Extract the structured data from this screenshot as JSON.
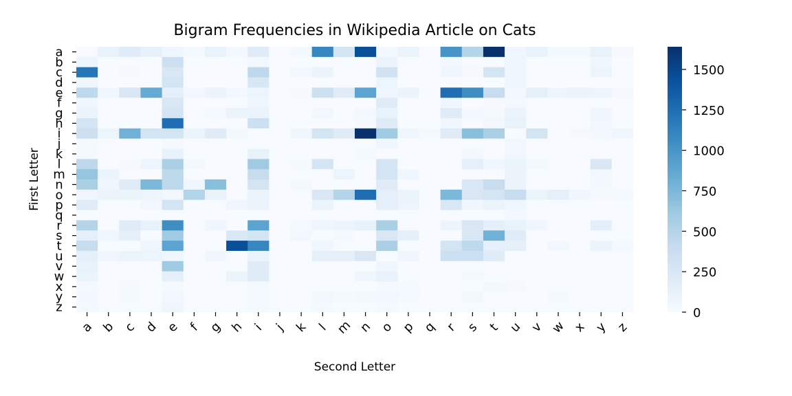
{
  "chart_data": {
    "type": "heatmap",
    "title": "Bigram Frequencies in Wikipedia Article on Cats",
    "xlabel": "Second Letter",
    "ylabel": "First Letter",
    "x_categories": [
      "a",
      "b",
      "c",
      "d",
      "e",
      "f",
      "g",
      "h",
      "i",
      "j",
      "k",
      "l",
      "m",
      "n",
      "o",
      "p",
      "q",
      "r",
      "s",
      "t",
      "u",
      "v",
      "w",
      "x",
      "y",
      "z"
    ],
    "y_categories": [
      "a",
      "b",
      "c",
      "d",
      "e",
      "f",
      "g",
      "h",
      "i",
      "j",
      "k",
      "l",
      "m",
      "n",
      "o",
      "p",
      "q",
      "r",
      "s",
      "t",
      "u",
      "v",
      "w",
      "x",
      "y",
      "z"
    ],
    "colorbar": {
      "min": 0,
      "max": 1640,
      "ticks": [
        0,
        250,
        500,
        750,
        1000,
        1250,
        1500
      ],
      "tick_labels": [
        "0",
        "250",
        "500",
        "750",
        "1000",
        "1250",
        "1500"
      ],
      "colormap": "Blues"
    },
    "values": [
      [
        10,
        120,
        200,
        130,
        60,
        30,
        120,
        40,
        200,
        0,
        40,
        1100,
        300,
        1450,
        40,
        100,
        0,
        1000,
        500,
        1640,
        60,
        120,
        40,
        40,
        120,
        20
      ],
      [
        80,
        0,
        0,
        0,
        350,
        0,
        0,
        0,
        50,
        0,
        0,
        0,
        0,
        0,
        100,
        0,
        0,
        40,
        0,
        0,
        60,
        0,
        0,
        0,
        60,
        0
      ],
      [
        1200,
        0,
        20,
        0,
        250,
        0,
        0,
        10,
        450,
        0,
        40,
        100,
        0,
        0,
        320,
        0,
        0,
        60,
        20,
        300,
        60,
        0,
        0,
        0,
        80,
        0
      ],
      [
        60,
        0,
        0,
        0,
        300,
        0,
        0,
        0,
        250,
        0,
        0,
        0,
        0,
        0,
        80,
        0,
        0,
        0,
        0,
        0,
        60,
        0,
        0,
        0,
        0,
        0
      ],
      [
        450,
        60,
        250,
        850,
        150,
        50,
        100,
        40,
        80,
        0,
        20,
        350,
        200,
        900,
        60,
        100,
        0,
        1250,
        1050,
        400,
        50,
        150,
        80,
        100,
        80,
        20
      ],
      [
        60,
        0,
        0,
        0,
        250,
        0,
        0,
        0,
        60,
        0,
        0,
        0,
        0,
        0,
        200,
        0,
        0,
        60,
        0,
        20,
        30,
        0,
        0,
        0,
        0,
        0
      ],
      [
        100,
        0,
        0,
        0,
        300,
        0,
        30,
        100,
        100,
        0,
        0,
        50,
        0,
        40,
        120,
        0,
        0,
        200,
        40,
        20,
        100,
        0,
        0,
        0,
        60,
        0
      ],
      [
        300,
        0,
        0,
        0,
        1250,
        0,
        0,
        0,
        350,
        0,
        0,
        0,
        0,
        20,
        200,
        0,
        0,
        60,
        0,
        50,
        120,
        0,
        0,
        0,
        50,
        0
      ],
      [
        350,
        80,
        800,
        300,
        300,
        100,
        200,
        40,
        0,
        0,
        60,
        300,
        200,
        1640,
        600,
        60,
        30,
        200,
        700,
        550,
        0,
        300,
        0,
        20,
        40,
        60
      ],
      [
        20,
        0,
        0,
        0,
        20,
        0,
        0,
        0,
        0,
        0,
        0,
        0,
        0,
        0,
        60,
        0,
        0,
        0,
        0,
        0,
        50,
        0,
        0,
        0,
        0,
        0
      ],
      [
        30,
        0,
        0,
        0,
        120,
        0,
        0,
        0,
        120,
        0,
        0,
        0,
        0,
        30,
        0,
        0,
        0,
        0,
        40,
        0,
        50,
        0,
        0,
        0,
        0,
        0
      ],
      [
        450,
        0,
        20,
        80,
        550,
        40,
        0,
        0,
        600,
        0,
        30,
        300,
        0,
        0,
        300,
        0,
        0,
        0,
        150,
        60,
        100,
        40,
        0,
        0,
        250,
        0
      ],
      [
        650,
        100,
        0,
        0,
        450,
        0,
        0,
        0,
        400,
        0,
        0,
        0,
        80,
        0,
        300,
        60,
        0,
        0,
        0,
        0,
        100,
        0,
        0,
        0,
        50,
        0
      ],
      [
        550,
        60,
        200,
        750,
        450,
        60,
        700,
        0,
        300,
        0,
        40,
        0,
        0,
        0,
        200,
        0,
        0,
        0,
        250,
        400,
        100,
        0,
        0,
        0,
        40,
        0
      ],
      [
        60,
        100,
        100,
        80,
        50,
        500,
        120,
        0,
        100,
        0,
        0,
        250,
        500,
        1250,
        150,
        100,
        0,
        750,
        250,
        300,
        400,
        100,
        150,
        60,
        20,
        30
      ],
      [
        200,
        0,
        0,
        50,
        300,
        0,
        0,
        60,
        100,
        0,
        0,
        100,
        0,
        0,
        150,
        80,
        0,
        250,
        60,
        100,
        60,
        0,
        0,
        0,
        0,
        0
      ],
      [
        0,
        0,
        0,
        0,
        0,
        0,
        0,
        0,
        0,
        0,
        0,
        0,
        0,
        0,
        0,
        0,
        0,
        0,
        0,
        0,
        40,
        0,
        0,
        0,
        0,
        0
      ],
      [
        500,
        0,
        200,
        120,
        1050,
        0,
        60,
        0,
        900,
        0,
        30,
        60,
        80,
        120,
        550,
        0,
        0,
        80,
        250,
        150,
        120,
        60,
        0,
        0,
        150,
        0
      ],
      [
        150,
        60,
        150,
        0,
        600,
        0,
        0,
        250,
        300,
        0,
        50,
        0,
        30,
        0,
        250,
        150,
        0,
        0,
        250,
        800,
        200,
        0,
        0,
        0,
        0,
        0
      ],
      [
        400,
        0,
        0,
        60,
        900,
        0,
        0,
        1450,
        1100,
        0,
        0,
        60,
        0,
        0,
        550,
        0,
        0,
        300,
        450,
        150,
        150,
        0,
        50,
        0,
        100,
        30
      ],
      [
        150,
        60,
        100,
        80,
        60,
        0,
        60,
        0,
        100,
        0,
        0,
        150,
        150,
        250,
        0,
        60,
        0,
        350,
        350,
        200,
        0,
        0,
        0,
        0,
        0,
        0
      ],
      [
        120,
        0,
        0,
        0,
        600,
        0,
        0,
        0,
        200,
        0,
        0,
        0,
        0,
        0,
        60,
        0,
        0,
        0,
        0,
        0,
        0,
        0,
        0,
        0,
        0,
        0
      ],
      [
        100,
        0,
        0,
        0,
        150,
        0,
        0,
        100,
        200,
        0,
        0,
        0,
        0,
        60,
        120,
        0,
        0,
        0,
        30,
        0,
        0,
        0,
        0,
        0,
        0,
        0
      ],
      [
        30,
        0,
        20,
        0,
        30,
        0,
        0,
        0,
        30,
        0,
        0,
        0,
        0,
        0,
        30,
        30,
        0,
        0,
        0,
        40,
        20,
        0,
        0,
        0,
        0,
        0
      ],
      [
        40,
        0,
        30,
        0,
        50,
        0,
        0,
        0,
        30,
        0,
        0,
        50,
        30,
        40,
        50,
        30,
        0,
        0,
        50,
        0,
        0,
        0,
        30,
        0,
        0,
        0
      ],
      [
        30,
        0,
        0,
        0,
        60,
        0,
        0,
        0,
        30,
        0,
        0,
        30,
        0,
        0,
        30,
        0,
        0,
        0,
        0,
        0,
        0,
        0,
        0,
        0,
        0,
        0
      ]
    ]
  }
}
